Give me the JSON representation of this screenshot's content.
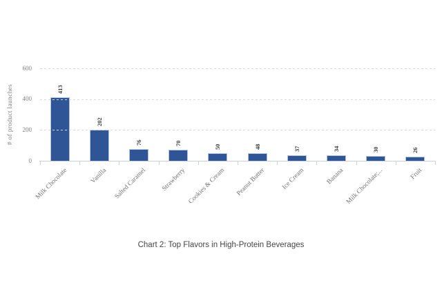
{
  "chart_data": {
    "type": "bar",
    "title": "Chart 2: Top Flavors in High-Protein Beverages",
    "ylabel": "# of product launches",
    "categories": [
      "Milk Chocolate",
      "Vanilla",
      "Salted Caramel",
      "Strawberry",
      "Cookies & Cream",
      "Peanut Butter",
      "Ice Cream",
      "Banana",
      "Milk Chocolate;...",
      "Fruit"
    ],
    "values": [
      413,
      202,
      76,
      70,
      50,
      48,
      37,
      34,
      30,
      26
    ],
    "ylim": [
      0,
      600
    ],
    "yticks": [
      0,
      200,
      400,
      600
    ],
    "grid": "dashed-horizontal",
    "legend": "none",
    "colors": {
      "bar": "#2F5597",
      "bar_border": "#b3c3de",
      "gridline": "#d9d9d9",
      "axis": "#c9d1dd",
      "tick_text": "#7f7f7f",
      "category_text": "#707070",
      "value_text": "#3a3a3a",
      "title_text": "#444444"
    }
  }
}
